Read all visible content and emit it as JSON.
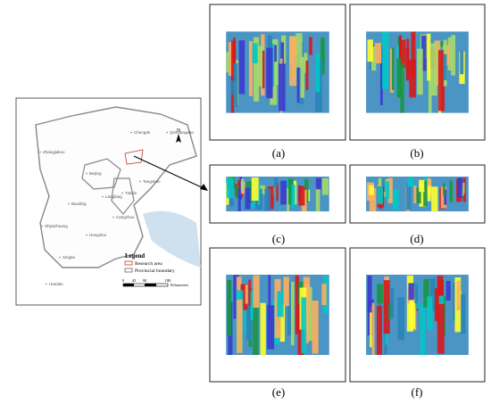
{
  "map": {
    "cities": [
      "Zhangjiakou",
      "Chengde",
      "Qinhuangdao",
      "Beijing",
      "Tangshan",
      "Tianjin",
      "Langfang",
      "Baoding",
      "Cangzhou",
      "Shijiazhuang",
      "Hengshui",
      "Xingtai",
      "Handan"
    ],
    "compass": "N",
    "legend": {
      "title": "Legend",
      "items": [
        "Research area",
        "Provincial boundary"
      ]
    },
    "scale": {
      "ticks": [
        0,
        45,
        90,
        180
      ],
      "unit": "Kilometers"
    }
  },
  "panels": [
    {
      "label": "(a)"
    },
    {
      "label": "(b)"
    },
    {
      "label": "(c)"
    },
    {
      "label": "(d)"
    },
    {
      "label": "(e)"
    },
    {
      "label": "(f)"
    }
  ]
}
